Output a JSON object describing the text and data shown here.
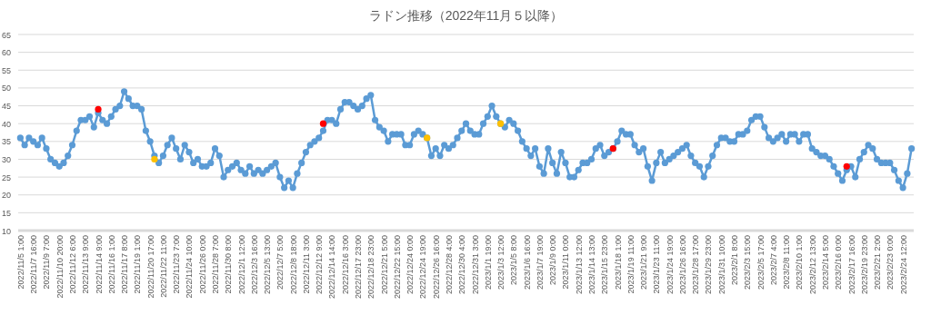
{
  "chart_data": {
    "type": "line",
    "title": "ラドン推移（2022年11月５以降）",
    "categories": [
      "2022/11/5 1:00",
      null,
      null,
      "2022/11/7 16:00",
      null,
      null,
      "2022/11/9 7:00",
      null,
      null,
      "2022/11/10 20:00",
      null,
      null,
      "2022/11/12 6:00",
      null,
      null,
      "2022/11/13 9:00",
      null,
      null,
      "2022/11/14 9:00",
      null,
      null,
      "2022/11/16 1:00",
      null,
      null,
      "2022/11/17 8:00",
      null,
      null,
      "2022/11/19 1:00",
      null,
      null,
      "2022/11/20 17:00",
      null,
      null,
      "2022/11/22 11:00",
      null,
      null,
      "2022/11/23 7:00",
      null,
      null,
      "2022/11/24 10:00",
      null,
      null,
      "2022/11/26 0:00",
      null,
      null,
      "2022/11/28 7:00",
      null,
      null,
      "2022/11/30 8:00",
      null,
      null,
      "2022/12/1 12:00",
      null,
      null,
      "2022/12/3 16:00",
      null,
      null,
      "2022/12/5 13:00",
      null,
      null,
      "2022/12/7 5:00",
      null,
      null,
      "2022/12/8 18:00",
      null,
      null,
      "2022/12/11 3:00",
      null,
      null,
      "2022/12/12 9:00",
      null,
      null,
      "2022/12/14 14:00",
      null,
      null,
      "2022/12/16 3:00",
      null,
      null,
      "2022/12/17 23:00",
      null,
      null,
      "2022/12/18 23:00",
      null,
      null,
      "2022/12/21 5:00",
      null,
      null,
      "2022/12/22 15:00",
      null,
      null,
      "2022/12/24 0:00",
      null,
      null,
      "2022/12/24 19:00",
      null,
      null,
      "2022/12/26 16:00",
      null,
      null,
      "2022/12/28 4:00",
      null,
      null,
      "2022/12/30 4:00",
      null,
      null,
      "2022/12/31 3:00",
      null,
      null,
      "2023/1/1 19:00",
      null,
      null,
      "2023/1/3 12:00",
      null,
      null,
      "2023/1/5 8:00",
      null,
      null,
      "2023/1/6 16:00",
      null,
      null,
      "2023/1/7 19:00",
      null,
      null,
      "2023/1/9 0:00",
      null,
      null,
      "2023/1/11 0:00",
      null,
      null,
      "2023/1/13 12:00",
      null,
      null,
      "2023/1/14 13:00",
      null,
      null,
      "2023/1/15 23:00",
      null,
      null,
      "2023/1/18 1:00",
      null,
      null,
      "2023/1/19 11:00",
      null,
      null,
      "2023/1/21 9:00",
      null,
      null,
      "2023/1/23 11:00",
      null,
      null,
      "2023/1/24 19:00",
      null,
      null,
      "2023/1/26 16:00",
      null,
      null,
      "2023/1/28 17:00",
      null,
      null,
      "2023/1/29 23:00",
      null,
      null,
      "2023/1/31 10:00",
      null,
      null,
      "2023/2/1 8:00",
      null,
      null,
      "2023/2/3 15:00",
      null,
      null,
      "2023/2/5 17:00",
      null,
      null,
      "2023/2/7 4:00",
      null,
      null,
      "2023/2/8 11:00",
      null,
      null,
      "2023/2/10 1:00",
      null,
      null,
      "2023/2/12 13:00",
      null,
      null,
      "2023/2/14 5:00",
      null,
      null,
      "2023/2/16 0:00",
      null,
      null,
      "2023/2/17 16:00",
      null,
      null,
      "2023/2/19 23:00",
      null,
      null,
      "2023/2/21 2:00",
      null,
      null,
      "2023/2/23 0:00",
      null,
      null,
      "2023/2/24 12:00",
      null,
      null
    ],
    "series": [
      {
        "color": "#5b9bd5",
        "values": [
          36,
          34,
          36,
          35,
          34,
          36,
          33,
          30,
          29,
          28,
          29,
          31,
          34,
          38,
          41,
          41,
          42,
          39,
          43,
          41,
          40,
          42,
          44,
          45,
          49,
          47,
          45,
          45,
          44,
          38,
          35,
          31,
          29,
          31,
          34,
          36,
          33,
          30,
          34,
          32,
          29,
          30,
          28,
          28,
          29,
          33,
          31,
          25,
          27,
          28,
          29,
          27,
          26,
          28,
          26,
          27,
          26,
          27,
          28,
          29,
          25,
          22,
          24,
          22,
          26,
          29,
          32,
          34,
          35,
          36,
          38,
          41,
          41,
          40,
          44,
          46,
          46,
          45,
          44,
          45,
          47,
          48,
          41,
          39,
          38,
          35,
          37,
          37,
          37,
          34,
          34,
          37,
          38,
          37,
          36,
          31,
          33,
          31,
          34,
          33,
          34,
          36,
          38,
          40,
          38,
          37,
          37,
          40,
          42,
          45,
          42,
          40,
          39,
          41,
          40,
          38,
          35,
          33,
          31,
          33,
          28,
          26,
          33,
          29,
          26,
          32,
          29,
          25,
          25,
          27,
          29,
          29,
          30,
          33,
          34,
          31,
          32,
          33,
          35,
          38,
          37,
          37,
          34,
          32,
          33,
          28,
          24,
          29,
          32,
          29,
          30,
          31,
          32,
          33,
          34,
          31,
          29,
          28,
          25,
          28,
          31,
          34,
          36,
          36,
          35,
          35,
          37,
          37,
          38,
          41,
          42,
          42,
          39,
          36,
          35,
          36,
          37,
          35,
          37,
          37,
          35,
          37,
          37,
          33,
          32,
          31,
          31,
          30,
          28,
          26,
          24,
          27,
          28,
          25,
          30,
          32,
          34,
          33,
          30,
          29,
          29,
          29,
          27,
          24,
          22,
          26,
          33
        ]
      },
      {
        "type": "scatter",
        "color": "#ff0000",
        "values": [
          null,
          null,
          null,
          null,
          null,
          null,
          null,
          null,
          null,
          null,
          null,
          null,
          null,
          null,
          null,
          null,
          null,
          null,
          44,
          null,
          null,
          null,
          null,
          null,
          null,
          null,
          null,
          null,
          null,
          null,
          null,
          null,
          null,
          null,
          null,
          null,
          null,
          null,
          null,
          null,
          null,
          null,
          null,
          null,
          null,
          null,
          null,
          null,
          null,
          null,
          null,
          null,
          null,
          null,
          null,
          null,
          null,
          null,
          null,
          null,
          null,
          null,
          null,
          null,
          null,
          null,
          null,
          null,
          null,
          null,
          40,
          null,
          null,
          null,
          null,
          null,
          null,
          null,
          null,
          null,
          null,
          null,
          null,
          null,
          null,
          null,
          null,
          null,
          null,
          null,
          null,
          null,
          null,
          null,
          null,
          null,
          null,
          null,
          null,
          null,
          null,
          null,
          null,
          null,
          null,
          null,
          null,
          null,
          null,
          null,
          null,
          null,
          null,
          null,
          null,
          null,
          null,
          null,
          null,
          null,
          null,
          null,
          null,
          null,
          null,
          null,
          null,
          null,
          null,
          null,
          null,
          null,
          null,
          null,
          null,
          null,
          null,
          33,
          null,
          null,
          null,
          null,
          null,
          null,
          null,
          null,
          null,
          null,
          null,
          null,
          null,
          null,
          null,
          null,
          null,
          null,
          null,
          null,
          null,
          null,
          null,
          null,
          null,
          null,
          null,
          null,
          null,
          null,
          null,
          null,
          null,
          null,
          null,
          null,
          null,
          null,
          null,
          null,
          null,
          null,
          null,
          null,
          null,
          null,
          null,
          null,
          null,
          null,
          null,
          null,
          null,
          28,
          null,
          null,
          null,
          null,
          null,
          null,
          null,
          null,
          null,
          null,
          null,
          null,
          null,
          null,
          null
        ]
      },
      {
        "type": "scatter",
        "color": "#ffc000",
        "values": [
          null,
          null,
          null,
          null,
          null,
          null,
          null,
          null,
          null,
          null,
          null,
          null,
          null,
          null,
          null,
          null,
          null,
          null,
          null,
          null,
          null,
          null,
          null,
          null,
          null,
          null,
          null,
          null,
          null,
          null,
          null,
          30,
          null,
          null,
          null,
          null,
          null,
          null,
          null,
          null,
          null,
          null,
          null,
          null,
          null,
          null,
          null,
          null,
          null,
          null,
          null,
          null,
          null,
          null,
          null,
          null,
          null,
          null,
          null,
          null,
          null,
          null,
          null,
          null,
          null,
          null,
          null,
          null,
          null,
          null,
          null,
          null,
          null,
          null,
          null,
          null,
          null,
          null,
          null,
          null,
          null,
          null,
          null,
          null,
          null,
          null,
          null,
          null,
          null,
          null,
          null,
          null,
          null,
          null,
          36,
          null,
          null,
          null,
          null,
          null,
          null,
          null,
          null,
          null,
          null,
          null,
          null,
          null,
          null,
          null,
          null,
          40,
          null,
          null,
          null,
          null,
          null,
          null,
          null,
          null,
          null,
          null,
          null,
          null,
          null,
          null,
          null,
          null,
          null,
          null,
          null,
          null,
          null,
          null,
          null,
          null,
          null,
          null,
          null,
          null,
          null,
          null,
          null,
          null,
          null,
          null,
          null,
          null,
          null,
          null,
          null,
          null,
          null,
          null,
          null,
          null,
          null,
          null,
          null,
          null,
          null,
          null,
          null,
          null,
          null,
          null,
          null,
          null,
          null,
          null,
          null,
          null,
          null,
          null,
          null,
          null,
          null,
          null,
          null,
          null,
          null,
          null,
          null,
          null,
          null,
          null,
          null,
          null,
          null,
          null,
          null,
          null,
          null,
          null,
          null,
          null,
          null,
          null,
          null,
          null,
          null,
          null,
          null,
          null,
          null,
          null,
          null
        ]
      }
    ],
    "ylim": [
      10,
      65
    ],
    "yticks": [
      10,
      15,
      20,
      25,
      30,
      35,
      40,
      45,
      50,
      55,
      60,
      65
    ],
    "grid": "y",
    "marker": "circle",
    "line_style": "solid"
  }
}
